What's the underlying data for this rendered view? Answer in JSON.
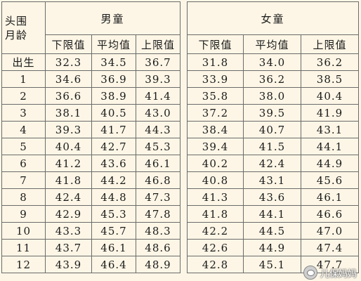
{
  "table": {
    "corner_line1": "头围",
    "corner_line2": "月龄",
    "group_boys": "男童",
    "group_girls": "女童",
    "sub_headers": [
      "下限值",
      "平均值",
      "上限值"
    ],
    "rows": [
      {
        "age": "出生",
        "boys": [
          "32.3",
          "34.5",
          "36.7"
        ],
        "girls": [
          "31.8",
          "34.0",
          "36.2"
        ]
      },
      {
        "age": "1",
        "boys": [
          "34.6",
          "36.9",
          "39.3"
        ],
        "girls": [
          "33.9",
          "36.2",
          "38.5"
        ]
      },
      {
        "age": "2",
        "boys": [
          "36.6",
          "38.9",
          "41.4"
        ],
        "girls": [
          "35.8",
          "38.0",
          "40.4"
        ]
      },
      {
        "age": "3",
        "boys": [
          "38.1",
          "40.5",
          "43.0"
        ],
        "girls": [
          "37.2",
          "39.5",
          "41.9"
        ]
      },
      {
        "age": "4",
        "boys": [
          "39.3",
          "41.7",
          "44.3"
        ],
        "girls": [
          "38.4",
          "40.7",
          "43.1"
        ]
      },
      {
        "age": "5",
        "boys": [
          "40.4",
          "42.7",
          "45.3"
        ],
        "girls": [
          "39.4",
          "41.5",
          "44.1"
        ]
      },
      {
        "age": "6",
        "boys": [
          "41.2",
          "43.6",
          "46.1"
        ],
        "girls": [
          "40.2",
          "42.4",
          "44.9"
        ]
      },
      {
        "age": "7",
        "boys": [
          "41.8",
          "44.2",
          "46.8"
        ],
        "girls": [
          "40.8",
          "43.1",
          "45.6"
        ]
      },
      {
        "age": "8",
        "boys": [
          "42.4",
          "44.8",
          "47.3"
        ],
        "girls": [
          "41.3",
          "43.6",
          "46.1"
        ]
      },
      {
        "age": "9",
        "boys": [
          "42.9",
          "45.3",
          "47.8"
        ],
        "girls": [
          "41.8",
          "44.1",
          "46.6"
        ]
      },
      {
        "age": "10",
        "boys": [
          "43.3",
          "45.7",
          "48.3"
        ],
        "girls": [
          "42.2",
          "44.5",
          "47.0"
        ]
      },
      {
        "age": "11",
        "boys": [
          "43.7",
          "46.1",
          "48.6"
        ],
        "girls": [
          "42.6",
          "44.9",
          "47.4"
        ]
      },
      {
        "age": "12",
        "boys": [
          "43.9",
          "46.4",
          "48.9"
        ],
        "girls": [
          "42.8",
          "45.1",
          "47.7"
        ]
      }
    ]
  },
  "watermark": {
    "text": "儿保妈妈",
    "icon": "wechat-icon"
  }
}
